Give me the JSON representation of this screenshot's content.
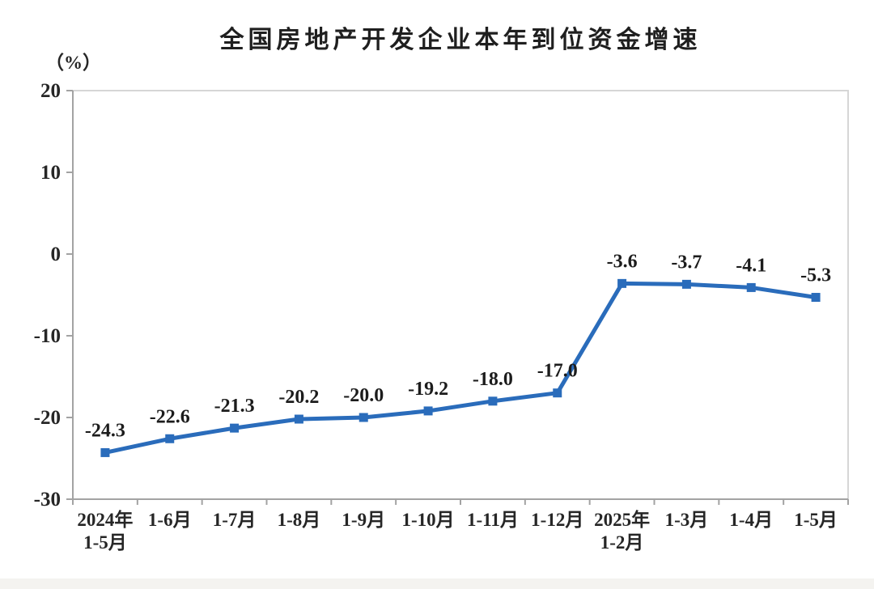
{
  "page": {
    "background": "#ffffff",
    "bottom_strip_color": "#f4f3f0"
  },
  "chart_data": {
    "type": "line",
    "title": "全国房地产开发企业本年到位资金增速",
    "ylabel": "（%）",
    "xlabel": "",
    "categories": [
      "2024年\n1-5月",
      "1-6月",
      "1-7月",
      "1-8月",
      "1-9月",
      "1-10月",
      "1-11月",
      "1-12月",
      "2025年\n1-2月",
      "1-3月",
      "1-4月",
      "1-5月"
    ],
    "values": [
      -24.3,
      -22.6,
      -21.3,
      -20.2,
      -20.0,
      -19.2,
      -18.0,
      -17.0,
      -3.6,
      -3.7,
      -4.1,
      -5.3
    ],
    "data_labels": [
      "-24.3",
      "-22.6",
      "-21.3",
      "-20.2",
      "-20.0",
      "-19.2",
      "-18.0",
      "-17.0",
      "-3.6",
      "-3.7",
      "-4.1",
      "-5.3"
    ],
    "ylim": [
      -30,
      20
    ],
    "yticks": [
      20,
      10,
      0,
      -10,
      -20,
      -30
    ],
    "grid": false,
    "legend": "none",
    "series_name": "本年到位资金增速",
    "line_color": "#2a6cbb",
    "marker": "square",
    "marker_color": "#2a6cbb",
    "axis_color": "#a3a3a3",
    "border_color": "#d6d6d6",
    "text_color": "#262626"
  }
}
